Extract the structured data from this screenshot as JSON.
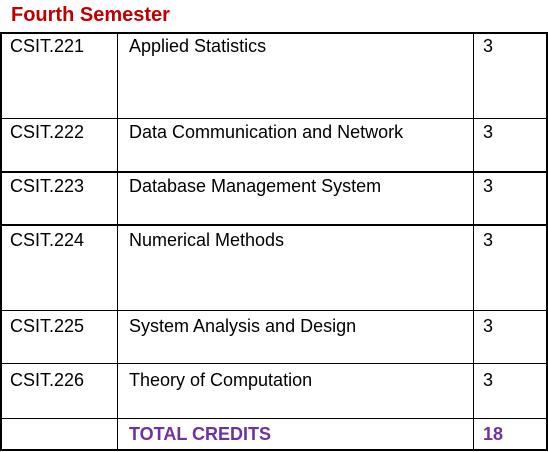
{
  "title": "Fourth Semester",
  "colors": {
    "title": "#c00000",
    "total": "#7030a0",
    "border": "#000000"
  },
  "courses": [
    {
      "code": "CSIT.221",
      "name": "Applied Statistics",
      "credits": "3"
    },
    {
      "code": "CSIT.222",
      "name": "Data Communication and Network",
      "credits": "3"
    },
    {
      "code": "CSIT.223",
      "name": "Database Management System",
      "credits": "3"
    },
    {
      "code": "CSIT.224",
      "name": "Numerical Methods",
      "credits": "3"
    },
    {
      "code": "CSIT.225",
      "name": "System Analysis and Design",
      "credits": "3"
    },
    {
      "code": "CSIT.226",
      "name": "Theory of Computation",
      "credits": "3"
    }
  ],
  "total": {
    "label": "TOTAL CREDITS",
    "credits": "18"
  }
}
